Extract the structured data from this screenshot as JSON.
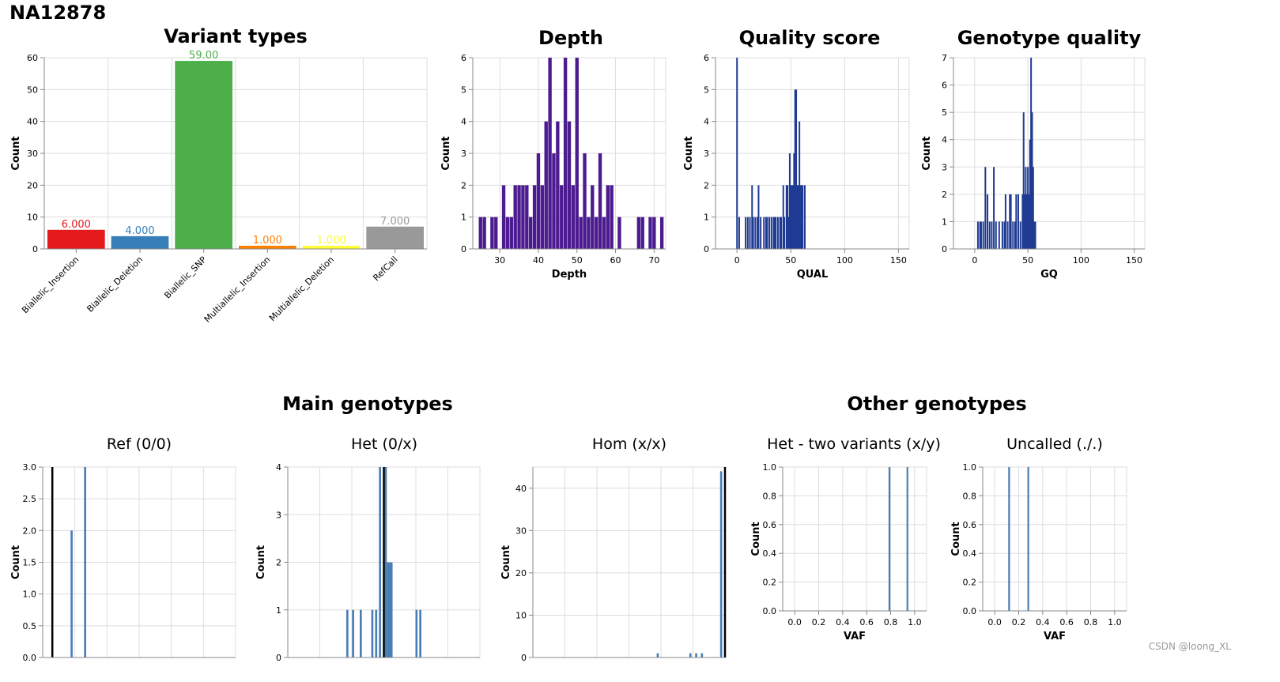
{
  "page": {
    "title": "NA12878",
    "watermark": "CSDN @loong_XL"
  },
  "groups": {
    "main": "Main genotypes",
    "other": "Other genotypes"
  },
  "colors": {
    "purple": "#4b1b8f",
    "navy": "#1f3a93",
    "steel": "#4a7fb5"
  },
  "chart_data": [
    {
      "id": "variant-types",
      "type": "bar",
      "title": "Variant types",
      "xlabel": "",
      "ylabel": "Count",
      "ylim": [
        0,
        60
      ],
      "yticks": [
        0,
        10,
        20,
        30,
        40,
        50,
        60
      ],
      "categories": [
        "Biallelic_Insertion",
        "Biallelic_Deletion",
        "Biallelic_SNP",
        "Multiallelic_Insertion",
        "Multiallelic_Deletion",
        "RefCall"
      ],
      "values": [
        6,
        4,
        59,
        1,
        1,
        7
      ],
      "labels": [
        "6.000",
        "4.000",
        "59.00",
        "1.000",
        "1.000",
        "7.000"
      ],
      "colors": [
        "#e41a1c",
        "#377eb8",
        "#4daf4a",
        "#ff7f00",
        "#ffff33",
        "#999999"
      ]
    },
    {
      "id": "depth",
      "type": "bar",
      "title": "Depth",
      "xlabel": "Depth",
      "ylabel": "Count",
      "xlim": [
        23,
        73
      ],
      "ylim": [
        0,
        6
      ],
      "xticks": [
        30,
        40,
        50,
        60,
        70
      ],
      "yticks": [
        0,
        1,
        2,
        3,
        4,
        5,
        6
      ],
      "binWidth": 1,
      "color": "#4b1b8f",
      "x": [
        25,
        26,
        28,
        29,
        31,
        32,
        33,
        34,
        35,
        36,
        37,
        38,
        39,
        40,
        41,
        42,
        43,
        44,
        45,
        46,
        47,
        48,
        49,
        50,
        51,
        52,
        53,
        54,
        55,
        56,
        57,
        58,
        59,
        61,
        66,
        67,
        69,
        70,
        72
      ],
      "y": [
        1,
        1,
        1,
        1,
        2,
        1,
        1,
        2,
        2,
        2,
        2,
        1,
        2,
        3,
        2,
        4,
        6,
        3,
        4,
        2,
        6,
        4,
        2,
        6,
        1,
        3,
        1,
        2,
        1,
        3,
        1,
        2,
        2,
        1,
        1,
        1,
        1,
        1,
        1
      ]
    },
    {
      "id": "quality-score",
      "type": "bar",
      "title": "Quality score",
      "xlabel": "QUAL",
      "ylabel": "Count",
      "xlim": [
        -20,
        160
      ],
      "ylim": [
        0,
        6
      ],
      "xticks": [
        0,
        50,
        100,
        150
      ],
      "yticks": [
        0,
        1,
        2,
        3,
        4,
        5,
        6
      ],
      "binWidth": 0.9,
      "color": "#1f3a93",
      "x": [
        0,
        2,
        8,
        10,
        12,
        14,
        15,
        17,
        19,
        20,
        22,
        25,
        27,
        28,
        30,
        32,
        34,
        35,
        36,
        38,
        40,
        41,
        43,
        44,
        46,
        47,
        48,
        49,
        50,
        51,
        52,
        53,
        54,
        55,
        56,
        57,
        58,
        59,
        60,
        61,
        63
      ],
      "y": [
        6,
        1,
        1,
        1,
        1,
        2,
        1,
        1,
        1,
        2,
        1,
        1,
        1,
        1,
        1,
        1,
        1,
        1,
        1,
        1,
        1,
        1,
        2,
        1,
        2,
        2,
        1,
        3,
        2,
        2,
        2,
        3,
        5,
        5,
        2,
        2,
        4,
        2,
        2,
        2,
        2
      ]
    },
    {
      "id": "genotype-quality",
      "type": "bar",
      "title": "Genotype quality",
      "xlabel": "GQ",
      "ylabel": "Count",
      "xlim": [
        -20,
        160
      ],
      "ylim": [
        0,
        7
      ],
      "xticks": [
        0,
        50,
        100,
        150
      ],
      "yticks": [
        0,
        1,
        2,
        3,
        4,
        5,
        6,
        7
      ],
      "binWidth": 0.9,
      "color": "#1f3a93",
      "x": [
        3,
        5,
        6,
        8,
        10,
        12,
        14,
        16,
        18,
        20,
        23,
        26,
        28,
        29,
        31,
        33,
        34,
        36,
        38,
        39,
        41,
        43,
        45,
        46,
        47,
        48,
        49,
        50,
        51,
        52,
        53,
        54,
        55,
        56,
        57
      ],
      "y": [
        1,
        1,
        1,
        1,
        3,
        2,
        1,
        1,
        3,
        1,
        1,
        1,
        1,
        2,
        1,
        2,
        2,
        1,
        1,
        2,
        2,
        1,
        2,
        5,
        2,
        3,
        2,
        3,
        2,
        4,
        7,
        5,
        3,
        1,
        1
      ]
    },
    {
      "id": "ref-0-0",
      "type": "bar",
      "title": "Ref (0/0)",
      "xlabel": "",
      "ylabel": "Count",
      "xlim": [
        0,
        1
      ],
      "ylim": [
        0,
        3
      ],
      "yticks": [
        0,
        0.5,
        1,
        1.5,
        2,
        2.5,
        3
      ],
      "ytickLabels": [
        "0.0",
        "0.5",
        "1.0",
        "1.5",
        "2.0",
        "2.5",
        "3.0"
      ],
      "xgridCount": 6,
      "binWidth": 0.013,
      "color": "#4a7fb5",
      "refLine": 0.05,
      "x": [
        0.15,
        0.22
      ],
      "y": [
        2,
        3
      ]
    },
    {
      "id": "het-0-x",
      "type": "bar",
      "title": "Het (0/x)",
      "xlabel": "",
      "ylabel": "Count",
      "xlim": [
        0,
        1
      ],
      "ylim": [
        0,
        4
      ],
      "yticks": [
        0,
        1,
        2,
        3,
        4
      ],
      "ytickLabels": [
        "0",
        "1",
        "2",
        "3",
        "4"
      ],
      "xgridCount": 6,
      "binWidth": 0.013,
      "color": "#4a7fb5",
      "refLine": 0.5,
      "x": [
        0.31,
        0.34,
        0.38,
        0.44,
        0.46,
        0.48,
        0.51,
        0.52,
        0.53,
        0.54,
        0.67,
        0.69
      ],
      "y": [
        1,
        1,
        1,
        1,
        1,
        4,
        4,
        2,
        2,
        2,
        1,
        1
      ]
    },
    {
      "id": "hom-x-x",
      "type": "bar",
      "title": "Hom (x/x)",
      "xlabel": "",
      "ylabel": "Count",
      "xlim": [
        0,
        1
      ],
      "ylim": [
        0,
        45
      ],
      "yticks": [
        0,
        10,
        20,
        30,
        40
      ],
      "ytickLabels": [
        "0",
        "10",
        "20",
        "30",
        "40"
      ],
      "xgridCount": 6,
      "binWidth": 0.013,
      "color": "#4a7fb5",
      "refLine": 1.0,
      "x": [
        0.65,
        0.82,
        0.85,
        0.88,
        0.98
      ],
      "y": [
        1,
        1,
        1,
        1,
        44
      ]
    },
    {
      "id": "het-two-variants",
      "type": "bar",
      "title": "Het - two variants (x/y)",
      "xlabel": "VAF",
      "ylabel": "Count",
      "xlim": [
        -0.1,
        1.1
      ],
      "ylim": [
        0,
        1
      ],
      "xticks": [
        0,
        0.2,
        0.4,
        0.6,
        0.8,
        1.0
      ],
      "xtickLabels": [
        "0.0",
        "0.2",
        "0.4",
        "0.6",
        "0.8",
        "1.0"
      ],
      "yticks": [
        0,
        0.2,
        0.4,
        0.6,
        0.8,
        1.0
      ],
      "ytickLabels": [
        "0.0",
        "0.2",
        "0.4",
        "0.6",
        "0.8",
        "1.0"
      ],
      "binWidth": 0.018,
      "color": "#4a7fb5",
      "x": [
        0.79,
        0.94
      ],
      "y": [
        1,
        1
      ]
    },
    {
      "id": "uncalled",
      "type": "bar",
      "title": "Uncalled (./.)",
      "xlabel": "VAF",
      "ylabel": "Count",
      "xlim": [
        -0.1,
        1.1
      ],
      "ylim": [
        0,
        1
      ],
      "xticks": [
        0,
        0.2,
        0.4,
        0.6,
        0.8,
        1.0
      ],
      "xtickLabels": [
        "0.0",
        "0.2",
        "0.4",
        "0.6",
        "0.8",
        "1.0"
      ],
      "yticks": [
        0,
        0.2,
        0.4,
        0.6,
        0.8,
        1.0
      ],
      "ytickLabels": [
        "0.0",
        "0.2",
        "0.4",
        "0.6",
        "0.8",
        "1.0"
      ],
      "binWidth": 0.018,
      "color": "#4a7fb5",
      "x": [
        0.12,
        0.28
      ],
      "y": [
        1,
        1
      ]
    }
  ]
}
